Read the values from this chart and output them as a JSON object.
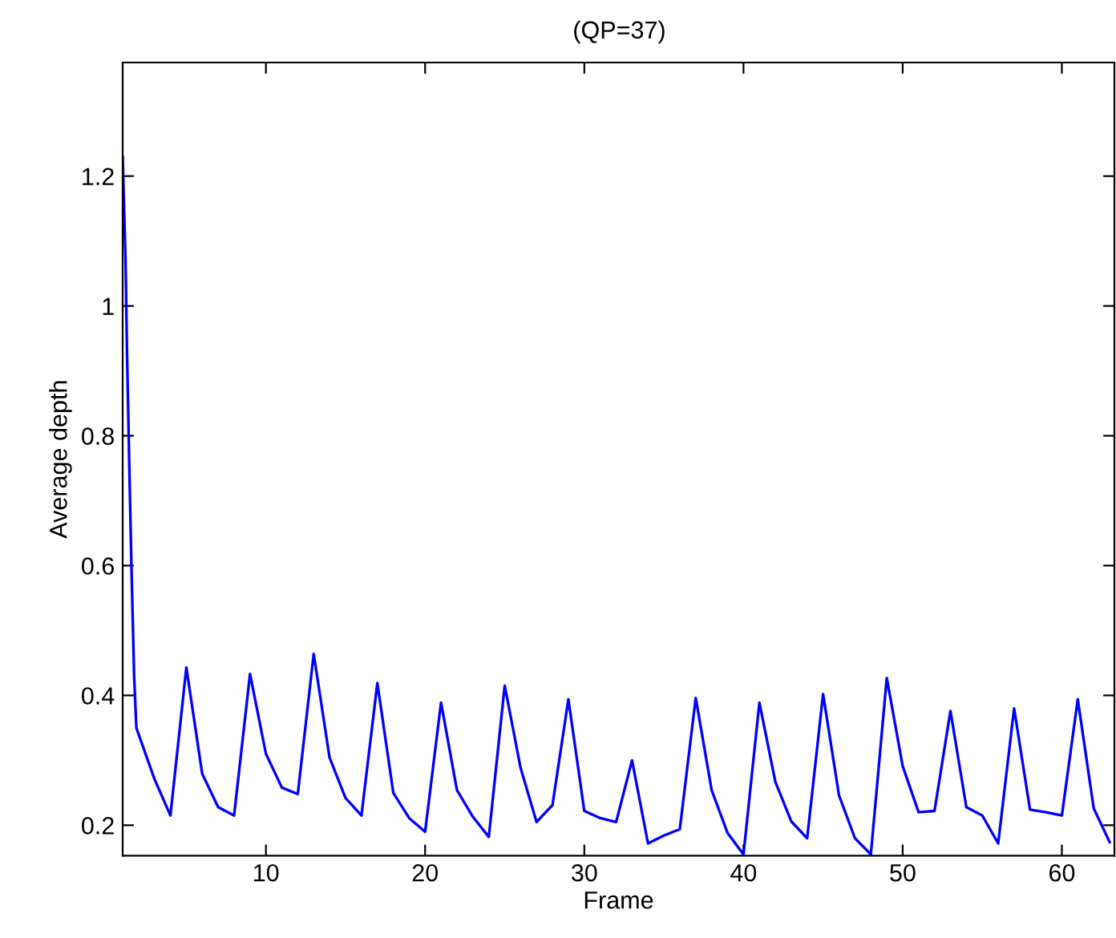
{
  "chart_data": {
    "type": "line",
    "title": "(QP=37)",
    "xlabel": "Frame",
    "ylabel": "Average depth",
    "x": [
      1,
      1.18,
      1.28,
      1.42,
      1.55,
      1.72,
      1.86,
      3,
      4,
      5,
      6,
      7,
      8,
      9,
      10,
      11,
      12,
      13,
      14,
      15,
      16,
      17,
      18,
      19,
      20,
      21,
      22,
      23,
      24,
      25,
      26,
      27,
      28,
      29,
      30,
      31,
      32,
      33,
      34,
      35,
      36,
      37,
      38,
      39,
      40,
      41,
      42,
      43,
      44,
      45,
      46,
      47,
      48,
      49,
      50,
      51,
      52,
      53,
      54,
      55,
      56,
      57,
      58,
      59,
      60,
      61,
      62,
      63
    ],
    "series": [
      {
        "color": "#0000ff",
        "values": [
          1.23,
          1.07,
          0.92,
          0.75,
          0.6,
          0.43,
          0.35,
          0.271,
          0.215,
          0.443,
          0.279,
          0.228,
          0.215,
          0.433,
          0.31,
          0.258,
          0.248,
          0.464,
          0.304,
          0.242,
          0.215,
          0.419,
          0.25,
          0.211,
          0.19,
          0.389,
          0.254,
          0.213,
          0.182,
          0.415,
          0.288,
          0.205,
          0.231,
          0.394,
          0.222,
          0.211,
          0.205,
          0.3,
          0.172,
          0.184,
          0.194,
          0.396,
          0.254,
          0.188,
          0.155,
          0.389,
          0.267,
          0.206,
          0.18,
          0.402,
          0.246,
          0.18,
          0.155,
          0.427,
          0.291,
          0.22,
          0.222,
          0.376,
          0.228,
          0.215,
          0.172,
          0.38,
          0.224,
          0.22,
          0.215,
          0.394,
          0.226,
          0.174
        ]
      }
    ],
    "xlim": [
      1,
      63.3
    ],
    "ylim": [
      0.153,
      1.375
    ],
    "xticks": [
      10,
      20,
      30,
      40,
      50,
      60
    ],
    "yticks": [
      0.2,
      0.4,
      0.6,
      0.8,
      1,
      1.2
    ],
    "grid": false,
    "legend": false,
    "marker": "none",
    "line_style": "solid"
  }
}
